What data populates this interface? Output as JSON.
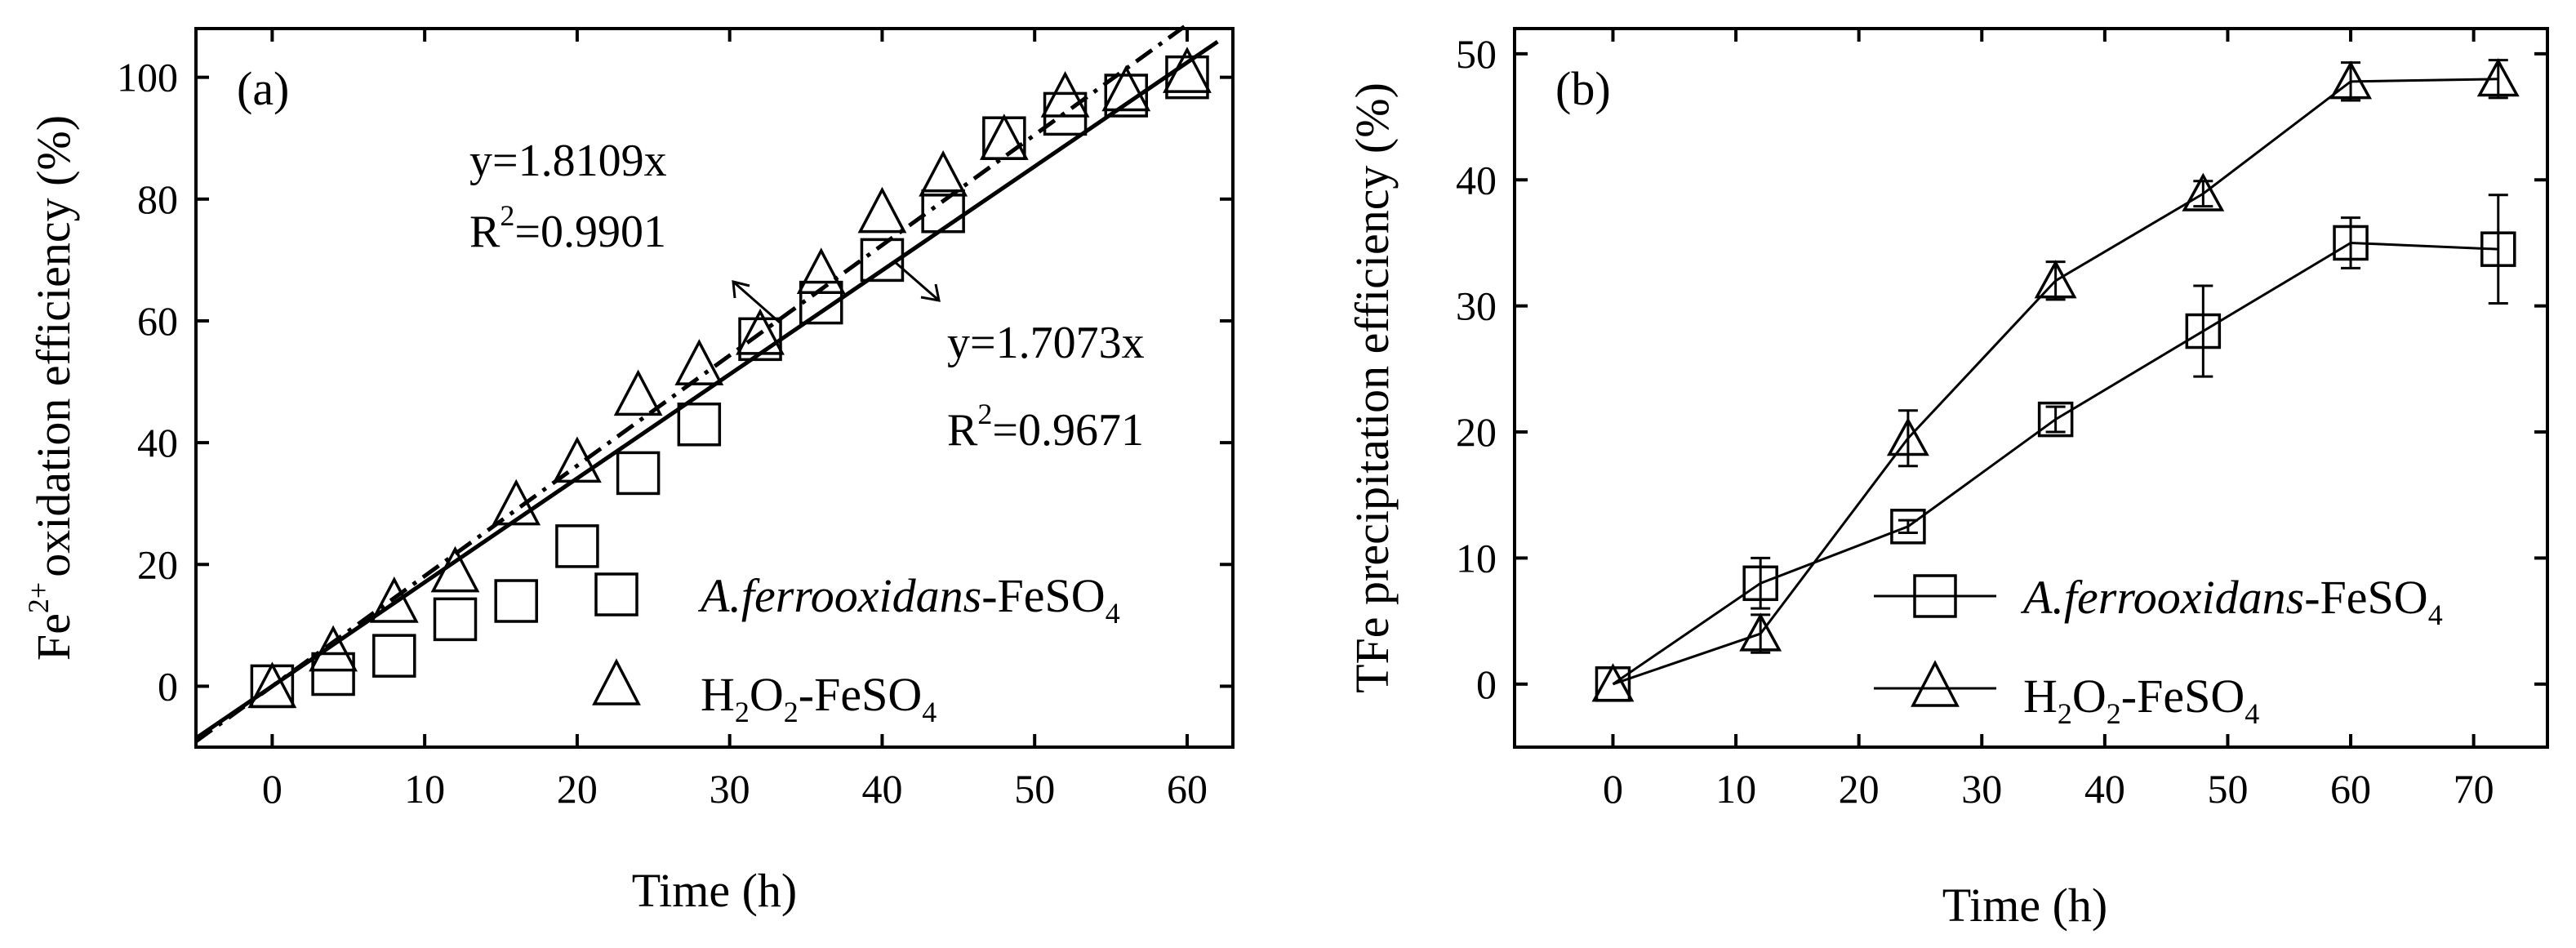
{
  "chart_data": [
    {
      "type": "scatter",
      "panel_label": "(a)",
      "xlabel": "Time (h)",
      "ylabel": {
        "prefix": "Fe",
        "sup": "2+",
        "rest": "oxidation efficiency (%)"
      },
      "xlim": [
        -5,
        63
      ],
      "ylim": [
        -10,
        108
      ],
      "xticks": [
        0,
        10,
        20,
        30,
        40,
        50,
        60
      ],
      "yticks": [
        0,
        20,
        40,
        60,
        80,
        100
      ],
      "series": [
        {
          "name": "A.ferrooxidans-FeSO4",
          "legend": {
            "italic": "A.ferrooxidans",
            "plain": "-FeSO",
            "sub": "4"
          },
          "marker": "square",
          "x": [
            0,
            4,
            8,
            12,
            16,
            20,
            24,
            28,
            32,
            36,
            40,
            44,
            48,
            52,
            56,
            60
          ],
          "y": [
            0,
            2,
            5,
            11,
            14,
            23,
            35,
            43,
            57,
            63,
            70,
            78,
            90,
            94,
            97,
            100
          ]
        },
        {
          "name": "H2O2-FeSO4",
          "legend": {
            "parts": [
              "H",
              "2",
              "O",
              "2",
              "-FeSO",
              "4"
            ]
          },
          "marker": "triangle",
          "x": [
            0,
            4,
            8,
            12,
            16,
            20,
            24,
            28,
            32,
            36,
            40,
            44,
            48,
            52,
            56,
            60
          ],
          "y": [
            0,
            6,
            14,
            19,
            30,
            37,
            48,
            53,
            58,
            68,
            78,
            84,
            90,
            97,
            98,
            101
          ]
        }
      ],
      "fits": [
        {
          "style": "dashdot",
          "slope": 1.8109,
          "label": "y=1.8109x",
          "r2_label": "R",
          "r2_sup": "2",
          "r2_value": "=0.9901",
          "x_range": [
            -5,
            60
          ]
        },
        {
          "style": "solid",
          "slope": 1.7073,
          "label": "y=1.7073x",
          "r2_label": "R",
          "r2_sup": "2",
          "r2_value": "=0.9671",
          "x_range": [
            -5,
            62
          ]
        }
      ]
    },
    {
      "type": "line",
      "panel_label": "(b)",
      "xlabel": "Time (h)",
      "ylabel": "TFe precipitation efficiency (%)",
      "xlim": [
        -8,
        76
      ],
      "ylim": [
        -5,
        52
      ],
      "xticks": [
        0,
        10,
        20,
        30,
        40,
        50,
        60,
        70
      ],
      "yticks": [
        0,
        10,
        20,
        30,
        40,
        50
      ],
      "series": [
        {
          "name": "A.ferrooxidans-FeSO4",
          "legend": {
            "italic": "A.ferrooxidans",
            "plain": "-FeSO",
            "sub": "4"
          },
          "marker": "square",
          "x": [
            0,
            12,
            24,
            36,
            48,
            60,
            72
          ],
          "y": [
            0,
            8,
            12.5,
            21,
            28,
            35,
            34.5
          ],
          "err": [
            0,
            2,
            0.5,
            1,
            3.6,
            2,
            4.3
          ]
        },
        {
          "name": "H2O2-FeSO4",
          "legend": {
            "parts": [
              "H",
              "2",
              "O",
              "2",
              "-FeSO",
              "4"
            ]
          },
          "marker": "triangle",
          "x": [
            0,
            12,
            24,
            36,
            48,
            60,
            72
          ],
          "y": [
            0,
            4,
            19.5,
            32,
            38.9,
            47.8,
            48
          ],
          "err": [
            0,
            1.5,
            2.2,
            1.5,
            1,
            1.5,
            1.5
          ]
        }
      ]
    }
  ]
}
